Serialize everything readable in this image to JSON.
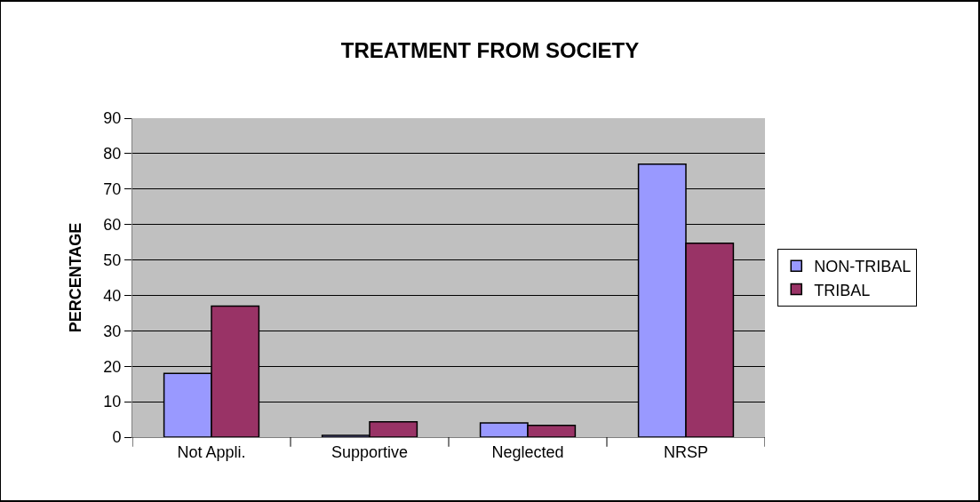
{
  "chart_data": {
    "type": "bar",
    "title": "TREATMENT FROM SOCIETY",
    "ylabel": "PERCENTAGE",
    "categories": [
      "Not Appli.",
      "Supportive",
      "Neglected",
      "NRSP"
    ],
    "series": [
      {
        "name": "NON-TRIBAL",
        "color": "#9999ff",
        "values": [
          18,
          0.5,
          4,
          77
        ]
      },
      {
        "name": "TRIBAL",
        "color": "#993366",
        "values": [
          37,
          4.3,
          3.3,
          54.7
        ]
      }
    ],
    "ylim": [
      0,
      90
    ],
    "yticks": [
      0,
      10,
      20,
      30,
      40,
      50,
      60,
      70,
      80,
      90
    ],
    "grid": "y",
    "legend": "right"
  }
}
